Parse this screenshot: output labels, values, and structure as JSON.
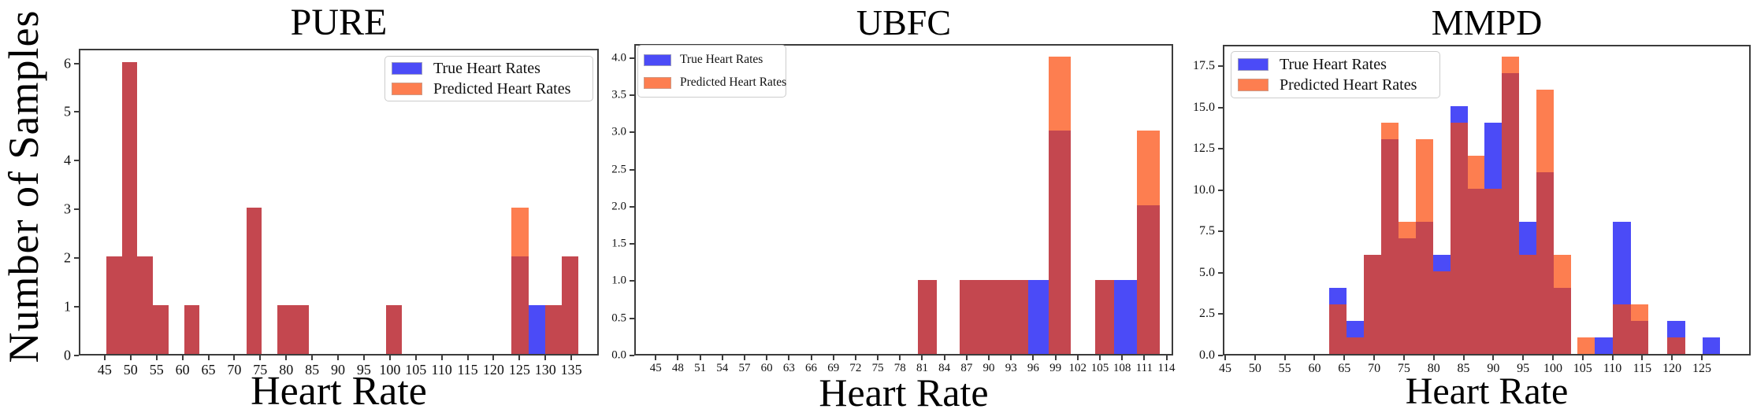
{
  "figure": {
    "y_axis_label": "Number of Samples",
    "legend": {
      "true_label": "True Heart Rates",
      "pred_label": "Predicted Heart Rates"
    },
    "colors": {
      "true_bar": "#4b4bf7",
      "pred_bar": "#fd7e50",
      "overlap_bar": "#c4474f",
      "spine": "#3c3c3c",
      "legend_border": "#cccccc"
    }
  },
  "chart_data": [
    {
      "type": "histogram",
      "title": "PURE",
      "xlabel": "Heart Rate",
      "ylabel": "Number of Samples",
      "series": [
        "True Heart Rates",
        "Predicted Heart Rates"
      ],
      "legend_loc": "upper right",
      "grid": false,
      "xlim": [
        40.0,
        140.3
      ],
      "ylim": [
        0,
        6.3
      ],
      "xticks": [
        "45",
        "50",
        "55",
        "60",
        "65",
        "70",
        "75",
        "80",
        "85",
        "90",
        "95",
        "100",
        "105",
        "110",
        "115",
        "120",
        "125",
        "130",
        "135"
      ],
      "yticks": [
        "0",
        "1",
        "2",
        "3",
        "4",
        "5",
        "6"
      ],
      "bins": [
        {
          "x0": 45.0,
          "x1": 48.0,
          "true": 2,
          "pred": 2
        },
        {
          "x0": 48.0,
          "x1": 51.0,
          "true": 6,
          "pred": 6
        },
        {
          "x0": 51.0,
          "x1": 54.0,
          "true": 2,
          "pred": 2
        },
        {
          "x0": 54.0,
          "x1": 57.0,
          "true": 1,
          "pred": 1
        },
        {
          "x0": 60.0,
          "x1": 63.0,
          "true": 1,
          "pred": 1
        },
        {
          "x0": 72.0,
          "x1": 75.0,
          "true": 3,
          "pred": 3
        },
        {
          "x0": 78.0,
          "x1": 81.0,
          "true": 1,
          "pred": 1
        },
        {
          "x0": 81.0,
          "x1": 84.0,
          "true": 1,
          "pred": 1
        },
        {
          "x0": 99.0,
          "x1": 102.0,
          "true": 1,
          "pred": 1
        },
        {
          "x0": 123.2,
          "x1": 126.4,
          "true": 2,
          "pred": 3
        },
        {
          "x0": 126.4,
          "x1": 129.6,
          "true": 1,
          "pred": 0
        },
        {
          "x0": 129.6,
          "x1": 132.8,
          "true": 1,
          "pred": 1
        },
        {
          "x0": 132.8,
          "x1": 136.0,
          "true": 2,
          "pred": 2
        }
      ]
    },
    {
      "type": "histogram",
      "title": "UBFC",
      "xlabel": "Heart Rate",
      "ylabel": "Number of Samples",
      "series": [
        "True Heart Rates",
        "Predicted Heart Rates"
      ],
      "legend_loc": "upper left",
      "grid": false,
      "xlim": [
        42.1,
        114.9
      ],
      "ylim": [
        0,
        4.19
      ],
      "xticks": [
        "45",
        "48",
        "51",
        "54",
        "57",
        "60",
        "63",
        "66",
        "69",
        "72",
        "75",
        "78",
        "81",
        "84",
        "87",
        "90",
        "93",
        "96",
        "99",
        "102",
        "105",
        "108",
        "111",
        "114"
      ],
      "yticks": [
        "0.0",
        "0.5",
        "1.0",
        "1.5",
        "2.0",
        "2.5",
        "3.0",
        "3.5",
        "4.0"
      ],
      "bins": [
        {
          "x0": 80.2,
          "x1": 82.8,
          "true": 1,
          "pred": 1
        },
        {
          "x0": 85.8,
          "x1": 88.9,
          "true": 1,
          "pred": 1
        },
        {
          "x0": 88.9,
          "x1": 92.0,
          "true": 1,
          "pred": 1
        },
        {
          "x0": 92.0,
          "x1": 95.1,
          "true": 1,
          "pred": 1
        },
        {
          "x0": 95.1,
          "x1": 97.9,
          "true": 1,
          "pred": 0
        },
        {
          "x0": 97.9,
          "x1": 100.9,
          "true": 3,
          "pred": 4
        },
        {
          "x0": 104.1,
          "x1": 106.7,
          "true": 1,
          "pred": 1
        },
        {
          "x0": 106.7,
          "x1": 109.8,
          "true": 1,
          "pred": 0
        },
        {
          "x0": 109.8,
          "x1": 112.9,
          "true": 2,
          "pred": 3
        }
      ]
    },
    {
      "type": "histogram",
      "title": "MMPD",
      "xlabel": "Heart Rate",
      "ylabel": "Number of Samples",
      "series": [
        "True Heart Rates",
        "Predicted Heart Rates"
      ],
      "legend_loc": "upper left",
      "grid": false,
      "xlim": [
        44.6,
        133.2
      ],
      "ylim": [
        0,
        18.8
      ],
      "xticks": [
        "45",
        "50",
        "55",
        "60",
        "65",
        "70",
        "75",
        "80",
        "85",
        "90",
        "95",
        "100",
        "105",
        "110",
        "115",
        "120",
        "125"
      ],
      "yticks": [
        "0.0",
        "2.5",
        "5.0",
        "7.5",
        "10.0",
        "12.5",
        "15.0",
        "17.5"
      ],
      "bins": [
        {
          "x0": 62.2,
          "x1": 65.1,
          "true": 4,
          "pred": 3
        },
        {
          "x0": 65.1,
          "x1": 68.0,
          "true": 2,
          "pred": 1
        },
        {
          "x0": 68.0,
          "x1": 70.9,
          "true": 6,
          "pred": 6
        },
        {
          "x0": 70.9,
          "x1": 73.8,
          "true": 13,
          "pred": 14
        },
        {
          "x0": 73.8,
          "x1": 76.7,
          "true": 7,
          "pred": 8
        },
        {
          "x0": 76.7,
          "x1": 79.6,
          "true": 8,
          "pred": 13
        },
        {
          "x0": 79.6,
          "x1": 82.5,
          "true": 6,
          "pred": 5
        },
        {
          "x0": 82.5,
          "x1": 85.4,
          "true": 15,
          "pred": 14
        },
        {
          "x0": 85.4,
          "x1": 88.3,
          "true": 10,
          "pred": 12
        },
        {
          "x0": 88.3,
          "x1": 91.2,
          "true": 14,
          "pred": 10
        },
        {
          "x0": 91.2,
          "x1": 94.1,
          "true": 17,
          "pred": 18
        },
        {
          "x0": 94.1,
          "x1": 97.0,
          "true": 8,
          "pred": 6
        },
        {
          "x0": 97.0,
          "x1": 99.9,
          "true": 11,
          "pred": 16
        },
        {
          "x0": 99.9,
          "x1": 102.8,
          "true": 4,
          "pred": 6
        },
        {
          "x0": 103.9,
          "x1": 106.8,
          "true": 0,
          "pred": 1
        },
        {
          "x0": 106.8,
          "x1": 109.8,
          "true": 1,
          "pred": 0
        },
        {
          "x0": 109.8,
          "x1": 112.8,
          "true": 8,
          "pred": 3
        },
        {
          "x0": 112.8,
          "x1": 115.8,
          "true": 2,
          "pred": 3
        },
        {
          "x0": 118.9,
          "x1": 121.9,
          "true": 2,
          "pred": 1
        },
        {
          "x0": 124.9,
          "x1": 127.8,
          "true": 1,
          "pred": 0
        }
      ]
    }
  ]
}
